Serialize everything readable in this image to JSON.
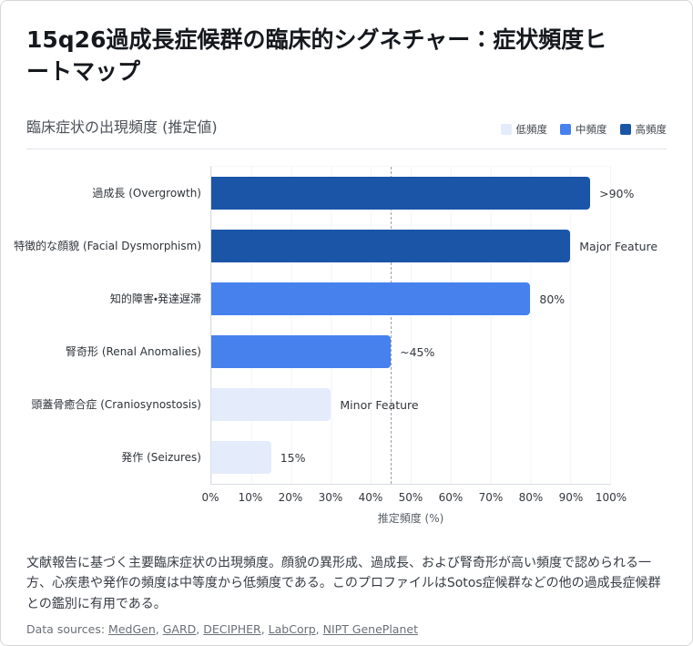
{
  "page": {
    "title": "15q26過成長症候群の臨床的シグネチャー：症状頻度ヒートマップ"
  },
  "chart_data": {
    "type": "bar",
    "orientation": "horizontal",
    "title": "臨床症状の出現頻度 (推定値)",
    "xlabel": "推定頻度 (%)",
    "xlim": [
      0,
      100
    ],
    "x_ticks": [
      "0%",
      "10%",
      "20%",
      "30%",
      "40%",
      "50%",
      "60%",
      "70%",
      "80%",
      "90%",
      "100%"
    ],
    "grid": true,
    "reference_line_x": 45,
    "categories": [
      "過成長 (Overgrowth)",
      "特徴的な顔貌 (Facial Dysmorphism)",
      "知的障害・発達遅滞",
      "腎奇形 (Renal Anomalies)",
      "頭蓋骨癒合症 (Craniosynostosis)",
      "発作 (Seizures)"
    ],
    "values": [
      95,
      90,
      80,
      45,
      30,
      15
    ],
    "bar_labels": [
      ">90%",
      "Major Feature",
      "80%",
      "~45%",
      "Minor Feature",
      "15%"
    ],
    "levels": [
      "high",
      "high",
      "medium",
      "medium",
      "low",
      "low"
    ],
    "level_colors": {
      "low": "#e4ecfb",
      "medium": "#4681ee",
      "high": "#1a55a8"
    },
    "legend": {
      "position": "top-right",
      "items": [
        {
          "label": "低頻度",
          "level": "low",
          "color": "#e4ecfb"
        },
        {
          "label": "中頻度",
          "level": "medium",
          "color": "#4681ee"
        },
        {
          "label": "高頻度",
          "level": "high",
          "color": "#1a55a8"
        }
      ]
    }
  },
  "footer": {
    "note": "文献報告に基づく主要臨床症状の出現頻度。顔貌の異形成、過成長、および腎奇形が高い頻度で認められる一方、心疾患や発作の頻度は中等度から低頻度である。このプロファイルはSotos症候群などの他の過成長症候群との鑑別に有用である。",
    "sources_prefix": "Data sources:",
    "sources": [
      "MedGen",
      "GARD",
      "DECIPHER",
      "LabCorp",
      "NIPT GenePlanet"
    ]
  }
}
